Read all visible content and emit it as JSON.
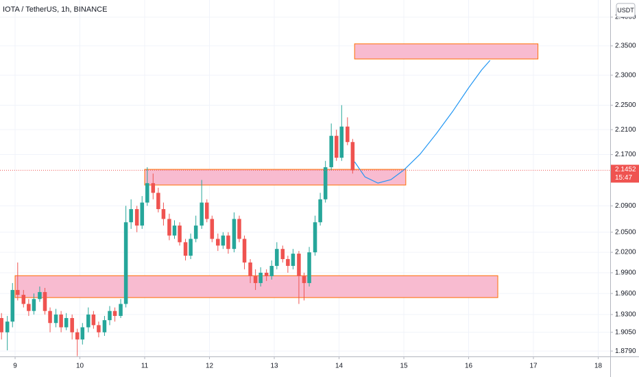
{
  "chart_data": {
    "type": "candlestick",
    "title": "IOTA / TetherUS, 1h, BINANCE",
    "currency_button": "USDT",
    "up_color": "#26a69a",
    "down_color": "#ef5350",
    "log": true,
    "grid": true,
    "xlim": [
      8.767,
      18.185
    ],
    "ylim": [
      1.8716,
      2.4303
    ],
    "xticks": [
      9,
      10,
      11,
      12,
      13,
      14,
      15,
      16,
      17,
      18
    ],
    "yticks": [
      {
        "value": 2.4,
        "label": "2.4000"
      },
      {
        "value": 2.35,
        "label": "2.3500"
      },
      {
        "value": 2.3,
        "label": "2.3000"
      },
      {
        "value": 2.25,
        "label": "2.2500"
      },
      {
        "value": 2.21,
        "label": "2.2100"
      },
      {
        "value": 2.17,
        "label": "2.1700"
      },
      {
        "value": 2.09,
        "label": "2.0900"
      },
      {
        "value": 2.05,
        "label": "2.0500"
      },
      {
        "value": 2.02,
        "label": "2.0200"
      },
      {
        "value": 1.99,
        "label": "1.9900"
      },
      {
        "value": 1.96,
        "label": "1.9600"
      },
      {
        "value": 1.93,
        "label": "1.9300"
      },
      {
        "value": 1.905,
        "label": "1.9050"
      },
      {
        "value": 1.879,
        "label": "1.8790"
      }
    ],
    "x": [
      8.79,
      8.88,
      8.96,
      9.04,
      9.13,
      9.21,
      9.29,
      9.38,
      9.46,
      9.54,
      9.63,
      9.71,
      9.79,
      9.88,
      9.96,
      10.04,
      10.13,
      10.21,
      10.29,
      10.38,
      10.46,
      10.54,
      10.63,
      10.71,
      10.79,
      10.88,
      10.96,
      11.04,
      11.13,
      11.21,
      11.29,
      11.38,
      11.46,
      11.54,
      11.63,
      11.71,
      11.79,
      11.88,
      11.96,
      12.04,
      12.13,
      12.21,
      12.29,
      12.38,
      12.46,
      12.54,
      12.63,
      12.71,
      12.79,
      12.88,
      12.96,
      13.04,
      13.13,
      13.21,
      13.29,
      13.38,
      13.46,
      13.54,
      13.63,
      13.71,
      13.79,
      13.88,
      13.96,
      14.04,
      14.13,
      14.21
    ],
    "open": [
      1.925,
      1.905,
      1.92,
      1.965,
      1.958,
      1.945,
      1.935,
      1.952,
      1.962,
      1.935,
      1.918,
      1.93,
      1.912,
      1.925,
      1.905,
      1.895,
      1.912,
      1.93,
      1.915,
      1.905,
      1.922,
      1.935,
      1.928,
      1.945,
      2.065,
      2.085,
      2.06,
      2.095,
      2.125,
      2.11,
      2.085,
      2.07,
      2.045,
      2.06,
      2.035,
      2.015,
      2.04,
      2.06,
      2.095,
      2.07,
      2.04,
      2.03,
      2.045,
      2.025,
      2.07,
      2.04,
      2.005,
      1.985,
      1.975,
      1.99,
      1.985,
      2.0,
      2.025,
      2.01,
      2.0,
      2.018,
      1.985,
      1.975,
      2.02,
      2.065,
      2.1,
      2.15,
      2.2,
      2.165,
      2.215,
      2.19
    ],
    "high": [
      1.932,
      1.928,
      1.975,
      2.005,
      1.965,
      1.952,
      1.96,
      1.97,
      1.968,
      1.94,
      1.938,
      1.935,
      1.932,
      1.93,
      1.91,
      1.918,
      1.94,
      1.935,
      1.92,
      1.928,
      1.942,
      1.94,
      1.952,
      2.09,
      2.1,
      2.09,
      2.105,
      2.15,
      2.14,
      2.118,
      2.095,
      2.078,
      2.068,
      2.065,
      2.04,
      2.048,
      2.075,
      2.13,
      2.1,
      2.075,
      2.048,
      2.05,
      2.05,
      2.08,
      2.075,
      2.045,
      2.01,
      1.995,
      1.998,
      1.995,
      2.008,
      2.035,
      2.03,
      2.015,
      2.025,
      2.022,
      1.99,
      2.028,
      2.075,
      2.11,
      2.16,
      2.22,
      2.21,
      2.25,
      2.23,
      2.195
    ],
    "low": [
      1.895,
      1.88,
      1.912,
      1.95,
      1.94,
      1.928,
      1.93,
      1.948,
      1.93,
      1.905,
      1.912,
      1.905,
      1.908,
      1.895,
      1.872,
      1.888,
      1.905,
      1.91,
      1.898,
      1.9,
      1.915,
      1.92,
      1.925,
      1.94,
      2.055,
      2.05,
      2.055,
      2.09,
      2.1,
      2.08,
      2.06,
      2.038,
      2.04,
      2.03,
      2.008,
      2.01,
      2.035,
      2.055,
      2.065,
      2.035,
      2.022,
      2.025,
      2.018,
      2.02,
      2.035,
      1.995,
      1.975,
      1.965,
      1.97,
      1.978,
      1.98,
      1.995,
      2.005,
      1.99,
      1.995,
      1.945,
      1.95,
      1.97,
      2.015,
      2.06,
      2.095,
      2.145,
      2.16,
      2.16,
      2.185,
      2.14
    ],
    "close": [
      1.905,
      1.92,
      1.965,
      1.958,
      1.945,
      1.935,
      1.952,
      1.962,
      1.935,
      1.918,
      1.93,
      1.912,
      1.925,
      1.905,
      1.895,
      1.912,
      1.93,
      1.915,
      1.905,
      1.922,
      1.935,
      1.928,
      1.945,
      2.065,
      2.085,
      2.06,
      2.095,
      2.125,
      2.11,
      2.085,
      2.07,
      2.045,
      2.06,
      2.035,
      2.015,
      2.04,
      2.06,
      2.095,
      2.07,
      2.04,
      2.03,
      2.045,
      2.025,
      2.07,
      2.04,
      2.005,
      1.985,
      1.975,
      1.99,
      1.985,
      2.0,
      2.025,
      2.01,
      2.0,
      2.018,
      1.985,
      1.975,
      2.02,
      2.065,
      2.1,
      2.15,
      2.2,
      2.165,
      2.215,
      2.19,
      2.1452
    ],
    "zone_fill": "#f8bbd0",
    "zone_stroke": "#ff6d00",
    "zones": [
      {
        "x": [
          14.24,
          17.07
        ],
        "y": [
          2.3535,
          2.3275
        ]
      },
      {
        "x": [
          11.0,
          15.03
        ],
        "y": [
          2.1466,
          2.1221
        ]
      },
      {
        "x": [
          9.0,
          16.45
        ],
        "y": [
          1.9857,
          1.9541
        ]
      }
    ],
    "projection": {
      "color": "#2196f3",
      "x": [
        14.24,
        14.4,
        14.6,
        14.8,
        15.0,
        15.25,
        15.5,
        15.75,
        16.0,
        16.2,
        16.33
      ],
      "y": [
        2.1586,
        2.1348,
        2.1251,
        2.1305,
        2.1456,
        2.1706,
        2.2034,
        2.2392,
        2.2788,
        2.3088,
        2.3251
      ]
    },
    "last_price": 2.1452,
    "countdown": "15:47",
    "last_price_color": "#ef5350"
  }
}
